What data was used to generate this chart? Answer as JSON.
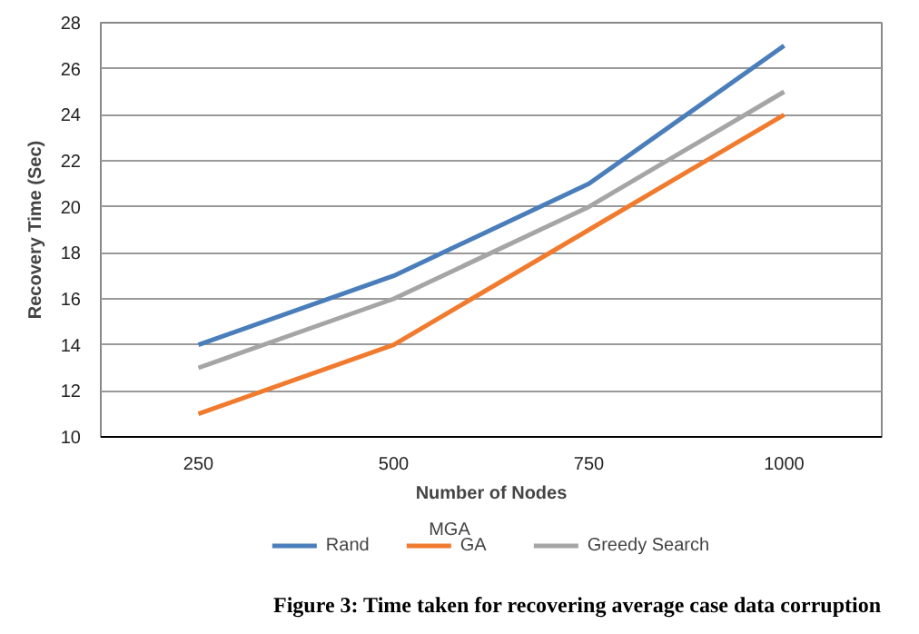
{
  "chart_data": {
    "type": "line",
    "xlabel": "Number of Nodes",
    "ylabel": "Recovery Time (Sec)",
    "categories": [
      "250",
      "500",
      "750",
      "1000"
    ],
    "series": [
      {
        "name": "Rand",
        "color": "#4a7ebb",
        "values": [
          14,
          17,
          21,
          27
        ]
      },
      {
        "name": "GA",
        "color": "#f07b2e",
        "values": [
          11,
          14,
          19,
          24
        ]
      },
      {
        "name": "Greedy Search",
        "color": "#a5a5a5",
        "values": [
          13,
          16,
          20,
          25
        ]
      }
    ],
    "ylim": [
      10,
      28
    ],
    "yticks": [
      10,
      12,
      14,
      16,
      18,
      20,
      22,
      24,
      26,
      28
    ],
    "grid": "y",
    "legend": "bottom",
    "marker": "none",
    "line_style": "solid",
    "annotations": [
      "MGA",
      "Figure 3: Time taken for recovering average case data corruption"
    ]
  }
}
